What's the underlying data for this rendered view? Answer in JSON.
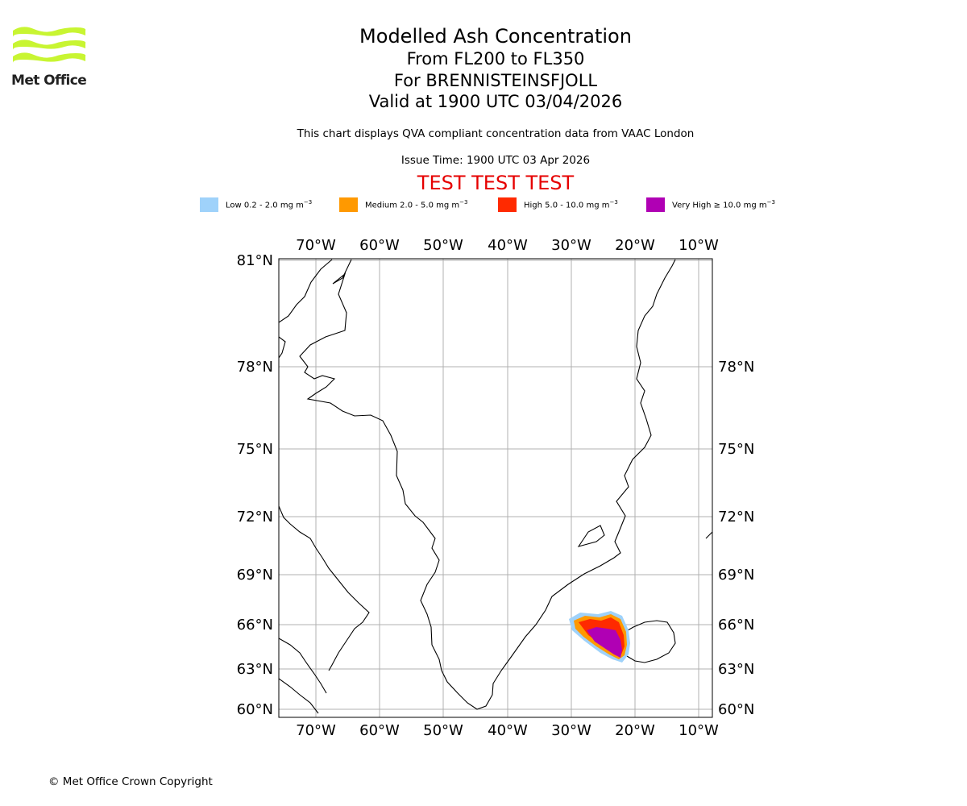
{
  "logo": {
    "text": "Met Office",
    "color": "#c8f532"
  },
  "header": {
    "title": "Modelled Ash Concentration",
    "flight_levels": "From FL200 to FL350",
    "volcano": "For BRENNISTEINSFJOLL",
    "valid": "Valid at 1900 UTC 03/04/2026"
  },
  "description": "This chart displays QVA compliant concentration data from VAAC London",
  "issue_time": "Issue Time: 1900 UTC 03 Apr 2026",
  "test_banner": "TEST TEST TEST",
  "legend": [
    {
      "label": "Low 0.2 - 2.0 mg m",
      "exp": "−3",
      "color": "#9fd2fa"
    },
    {
      "label": "Medium 2.0 - 5.0 mg m",
      "exp": "−3",
      "color": "#ff9900"
    },
    {
      "label": "High 5.0 - 10.0 mg m",
      "exp": "−3",
      "color": "#ff2a00"
    },
    {
      "label": "Very High  ≥  10.0 mg m",
      "exp": "−3",
      "color": "#b000b4"
    }
  ],
  "map": {
    "lon_labels": [
      "70°W",
      "60°W",
      "50°W",
      "40°W",
      "30°W",
      "20°W",
      "10°W"
    ],
    "lat_labels": [
      "81°N",
      "78°N",
      "75°N",
      "72°N",
      "69°N",
      "66°N",
      "63°N",
      "60°N"
    ],
    "extent": {
      "lon_min": -75.7,
      "lon_max": -7.8,
      "lat_min": 59.6,
      "lat_max": 81.0
    },
    "grid": true
  },
  "copyright": "© Met Office Crown Copyright"
}
